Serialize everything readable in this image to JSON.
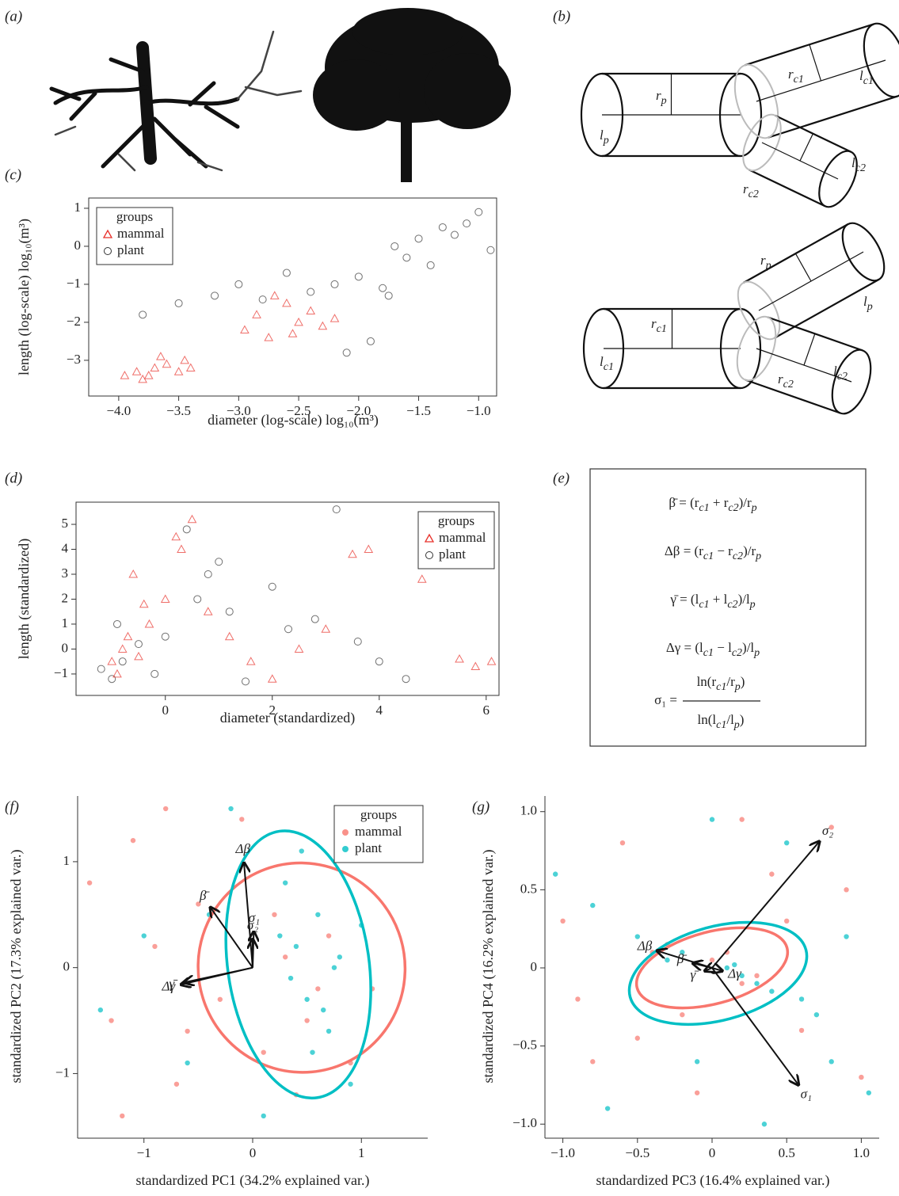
{
  "panel_labels": [
    "(a)",
    "(b)",
    "(c)",
    "(d)",
    "(e)",
    "(f)",
    "(g)"
  ],
  "cylinder_labels": [
    {
      "base": "r",
      "sub": "p"
    },
    {
      "base": "l",
      "sub": "p"
    },
    {
      "base": "r",
      "sub": "c1"
    },
    {
      "base": "l",
      "sub": "c1"
    },
    {
      "base": "r",
      "sub": "c2"
    },
    {
      "base": "l",
      "sub": "c2"
    },
    {
      "base": "r",
      "sub": "p"
    },
    {
      "base": "l",
      "sub": "p"
    },
    {
      "base": "r",
      "sub": "c1"
    },
    {
      "base": "l",
      "sub": "c1"
    },
    {
      "base": "r",
      "sub": "c2"
    },
    {
      "base": "l",
      "sub": "c2"
    }
  ],
  "formulas": [
    [
      {
        "t": "β̄ = (r"
      },
      {
        "sub": "c1"
      },
      {
        "t": " + r"
      },
      {
        "sub": "c2"
      },
      {
        "t": ")/r"
      },
      {
        "sub": "p"
      }
    ],
    [
      {
        "t": "Δβ = (r"
      },
      {
        "sub": "c1"
      },
      {
        "t": " − r"
      },
      {
        "sub": "c2"
      },
      {
        "t": ")/r"
      },
      {
        "sub": "p"
      }
    ],
    [
      {
        "t": "γ̄ = (l"
      },
      {
        "sub": "c1"
      },
      {
        "t": " + l"
      },
      {
        "sub": "c2"
      },
      {
        "t": ")/l"
      },
      {
        "sub": "p"
      }
    ],
    [
      {
        "t": "Δγ = (l"
      },
      {
        "sub": "c1"
      },
      {
        "t": " − l"
      },
      {
        "sub": "c2"
      },
      {
        "t": ")/l"
      },
      {
        "sub": "p"
      }
    ]
  ],
  "fraction": {
    "lhs": "σ₁ =",
    "numerator": [
      {
        "t": "ln(r"
      },
      {
        "sub": "c1"
      },
      {
        "t": "/r"
      },
      {
        "sub": "p"
      },
      {
        "t": ")"
      }
    ],
    "denominator": [
      {
        "t": "ln(l"
      },
      {
        "sub": "c1"
      },
      {
        "t": "/l"
      },
      {
        "sub": "p"
      },
      {
        "t": ")"
      }
    ]
  },
  "chart_data": [
    {
      "type": "scatter",
      "xlabel": "diameter (log-scale) log₁₀(m³)",
      "ylabel": "length (log-scale) log₁₀(m³)",
      "xlim": [
        -4.25,
        -0.85
      ],
      "ylim": [
        -3.94,
        1.27
      ],
      "xticks": [
        {
          "value": -4,
          "label": "−4.0"
        },
        {
          "value": -3.5,
          "label": "−3.5"
        },
        {
          "value": -3,
          "label": "−3.0"
        },
        {
          "value": -2.5,
          "label": "−2.5"
        },
        {
          "value": -2,
          "label": "−2.0"
        },
        {
          "value": -1.5,
          "label": "−1.5"
        },
        {
          "value": -1,
          "label": "−1.0"
        }
      ],
      "yticks": [
        1,
        0,
        {
          "value": -1,
          "label": "−1"
        },
        {
          "value": -2,
          "label": "−2"
        },
        {
          "value": -3,
          "label": "−3"
        }
      ],
      "frame": true,
      "legend": {
        "title": "groups",
        "position": "top-left"
      },
      "series": [
        {
          "name": "plant",
          "color": "#333333",
          "marker": "circle",
          "filled": false,
          "x": [
            -3.8,
            -3.5,
            -3.2,
            -3.0,
            -2.8,
            -2.6,
            -2.4,
            -2.2,
            -2.0,
            -1.9,
            -1.8,
            -1.7,
            -1.6,
            -1.5,
            -1.4,
            -1.3,
            -1.2,
            -1.1,
            -1.0,
            -0.9,
            -2.1,
            -1.75
          ],
          "y": [
            -1.8,
            -1.5,
            -1.3,
            -1.0,
            -1.4,
            -0.7,
            -1.2,
            -1.0,
            -0.8,
            -2.5,
            -1.1,
            0.0,
            -0.3,
            0.2,
            -0.5,
            0.5,
            0.3,
            0.6,
            0.9,
            -0.1,
            -2.8,
            -1.3
          ]
        },
        {
          "name": "mammal",
          "color": "#e8302a",
          "marker": "triangle",
          "filled": false,
          "x": [
            -3.95,
            -3.85,
            -3.8,
            -3.7,
            -3.6,
            -3.5,
            -3.45,
            -3.4,
            -3.75,
            -3.65,
            -2.95,
            -2.85,
            -2.75,
            -2.6,
            -2.5,
            -2.4,
            -2.3,
            -2.7,
            -2.55,
            -2.2
          ],
          "y": [
            -3.4,
            -3.3,
            -3.5,
            -3.2,
            -3.1,
            -3.3,
            -3.0,
            -3.2,
            -3.4,
            -2.9,
            -2.2,
            -1.8,
            -2.4,
            -1.5,
            -2.0,
            -1.7,
            -2.1,
            -1.3,
            -2.3,
            -1.9
          ]
        }
      ]
    },
    {
      "type": "scatter",
      "xlabel": "diameter (standardized)",
      "ylabel": "length (standardized)",
      "xlim": [
        -1.67,
        6.24
      ],
      "ylim": [
        -1.86,
        5.89
      ],
      "xticks": [
        0,
        2,
        4,
        6
      ],
      "yticks": [
        5,
        4,
        3,
        2,
        1,
        0,
        {
          "value": -1,
          "label": "−1"
        }
      ],
      "frame": true,
      "legend": {
        "title": "groups",
        "position": "top-right"
      },
      "series": [
        {
          "name": "plant",
          "color": "#333333",
          "marker": "circle",
          "filled": false,
          "x": [
            -1.2,
            -1,
            -0.8,
            -0.5,
            -0.2,
            0,
            0.4,
            0.8,
            1.2,
            1.5,
            2,
            2.3,
            2.8,
            3.2,
            3.6,
            4,
            4.5,
            1,
            0.6,
            -0.9
          ],
          "y": [
            -0.8,
            -1.2,
            -0.5,
            0.2,
            -1,
            0.5,
            4.8,
            3,
            1.5,
            -1.3,
            2.5,
            0.8,
            1.2,
            5.6,
            0.3,
            -0.5,
            -1.2,
            3.5,
            2,
            1
          ]
        },
        {
          "name": "mammal",
          "color": "#e8302a",
          "marker": "triangle",
          "filled": false,
          "x": [
            -1,
            -0.9,
            -0.8,
            -0.7,
            -0.5,
            -0.3,
            0,
            0.2,
            0.5,
            0.8,
            1.2,
            1.6,
            2,
            2.5,
            3,
            3.5,
            3.8,
            4.8,
            5.5,
            5.8,
            6.1,
            -0.6,
            0.3,
            -0.4
          ],
          "y": [
            -0.5,
            -1,
            0,
            0.5,
            -0.3,
            1,
            2,
            4.5,
            5.2,
            1.5,
            0.5,
            -0.5,
            -1.2,
            0,
            0.8,
            3.8,
            4,
            2.8,
            -0.4,
            -0.7,
            -0.5,
            3,
            4,
            1.8
          ]
        }
      ]
    },
    {
      "type": "scatter",
      "xlabel": "standardized PC1 (34.2% explained var.)",
      "ylabel": "standardized PC2 (17.3% explained var.)",
      "xlim": [
        -1.61,
        1.61
      ],
      "ylim": [
        -1.61,
        1.62
      ],
      "xticks": [
        {
          "value": -1,
          "label": "−1"
        },
        0,
        1
      ],
      "yticks": [
        1,
        0,
        {
          "value": -1,
          "label": "−1"
        }
      ],
      "frame": false,
      "legend": {
        "title": "groups",
        "position": "top-right"
      },
      "series": [
        {
          "name": "mammal",
          "color": "#f8766d",
          "marker": "circle",
          "filled": true,
          "x": [
            -1.5,
            -1.3,
            -1.1,
            -0.9,
            -0.7,
            -0.5,
            -0.3,
            -0.1,
            0.1,
            0.3,
            0.5,
            0.7,
            0.9,
            1.1,
            -1.2,
            -0.6,
            0.2,
            0.6,
            -0.8,
            0.4
          ],
          "y": [
            0.8,
            -0.5,
            1.2,
            0.2,
            -1.1,
            0.6,
            -0.3,
            1.4,
            -0.8,
            0.1,
            -0.5,
            0.3,
            -0.9,
            -0.2,
            -1.4,
            -0.6,
            0.5,
            -0.2,
            1.5,
            -1.2
          ]
        },
        {
          "name": "plant",
          "color": "#00bfc4",
          "marker": "circle",
          "filled": true,
          "x": [
            -1.4,
            -1,
            -0.6,
            -0.2,
            0.1,
            0.3,
            0.4,
            0.5,
            0.6,
            0.7,
            0.8,
            0.9,
            1,
            0.35,
            0.55,
            0.45,
            -0.4,
            0.65,
            0.25,
            0.75
          ],
          "y": [
            -0.4,
            0.3,
            -0.9,
            1.5,
            -1.4,
            0.8,
            0.2,
            -0.3,
            0.5,
            -0.6,
            0.1,
            -1.1,
            0.4,
            -0.1,
            -0.8,
            1.1,
            0.5,
            -0.4,
            0.3,
            0
          ]
        }
      ],
      "ellipses": [
        {
          "series": 0,
          "cx": 0.45,
          "cy": 0.0,
          "rx": 0.95,
          "ry": 0.99,
          "angle": -20
        },
        {
          "series": 1,
          "cx": 0.42,
          "cy": 0.03,
          "rx": 0.65,
          "ry": 1.27,
          "angle": -8
        }
      ],
      "arrows": [
        {
          "label": "Δβ",
          "x": -0.08,
          "y": 0.99
        },
        {
          "label": "β̄",
          "x": -0.39,
          "y": 0.57
        },
        {
          "label": "σ₁",
          "x": 0.01,
          "y": 0.34
        },
        {
          "label": "σ₂",
          "x": 0.0,
          "y": 0.27
        },
        {
          "label": "γ̄",
          "x": -0.63,
          "y": -0.14
        },
        {
          "label": "Δγ",
          "x": -0.66,
          "y": -0.16
        }
      ]
    },
    {
      "type": "scatter",
      "xlabel": "standardized PC3 (16.4% explained var.)",
      "ylabel": "standardized PC4 (16.2% explained var.)",
      "xlim": [
        -1.12,
        1.12
      ],
      "ylim": [
        -1.09,
        1.1
      ],
      "xticks": [
        {
          "value": -1,
          "label": "−1.0"
        },
        {
          "value": -0.5,
          "label": "−0.5"
        },
        0,
        0.5,
        {
          "value": 1,
          "label": "1.0"
        }
      ],
      "yticks": [
        {
          "value": 1,
          "label": "1.0"
        },
        0.5,
        0,
        {
          "value": -0.5,
          "label": "−0.5"
        },
        {
          "value": -1,
          "label": "−1.0"
        }
      ],
      "frame": false,
      "series": [
        {
          "name": "mammal",
          "color": "#f8766d",
          "marker": "circle",
          "filled": true,
          "x": [
            -1,
            -0.8,
            -0.6,
            -0.4,
            -0.2,
            0,
            0.2,
            0.4,
            0.6,
            0.8,
            1,
            -0.3,
            0.1,
            0.3,
            -0.1,
            0.5,
            -0.9,
            0.9,
            0.2,
            -0.5
          ],
          "y": [
            0.3,
            -0.6,
            0.8,
            0.1,
            -0.3,
            0.05,
            -0.1,
            0.6,
            -0.4,
            0.9,
            -0.7,
            0.15,
            0.1,
            -0.05,
            -0.8,
            0.3,
            -0.2,
            0.5,
            0.95,
            -0.45
          ]
        },
        {
          "name": "plant",
          "color": "#00bfc4",
          "marker": "circle",
          "filled": true,
          "x": [
            -1.05,
            -0.7,
            -0.5,
            -0.3,
            -0.1,
            0.1,
            0.3,
            0.5,
            0.7,
            0.9,
            1.05,
            -0.2,
            0.2,
            0.4,
            0,
            0.6,
            -0.8,
            0.8,
            0.15,
            0.35
          ],
          "y": [
            0.6,
            -0.9,
            0.2,
            0.05,
            -0.6,
            0,
            -0.1,
            0.8,
            -0.3,
            0.2,
            -0.8,
            0.1,
            -0.05,
            -0.15,
            0.95,
            -0.2,
            0.4,
            -0.6,
            0.02,
            -1
          ]
        }
      ],
      "ellipses": [
        {
          "series": 0,
          "cx": 0.0,
          "cy": 0.0,
          "rx": 0.52,
          "ry": 0.23,
          "angle": -15
        },
        {
          "series": 1,
          "cx": 0.04,
          "cy": -0.035,
          "rx": 0.61,
          "ry": 0.3,
          "angle": -15
        }
      ],
      "arrows": [
        {
          "label": "σ₂",
          "x": 0.72,
          "y": 0.81
        },
        {
          "label": "σ₁",
          "x": 0.58,
          "y": -0.75
        },
        {
          "label": "Δβ",
          "x": -0.37,
          "y": 0.11
        },
        {
          "label": "β̄",
          "x": -0.13,
          "y": 0.03
        },
        {
          "label": "γ̄",
          "x": -0.05,
          "y": -0.02
        },
        {
          "label": "Δγ",
          "x": 0.07,
          "y": -0.02
        }
      ]
    }
  ]
}
